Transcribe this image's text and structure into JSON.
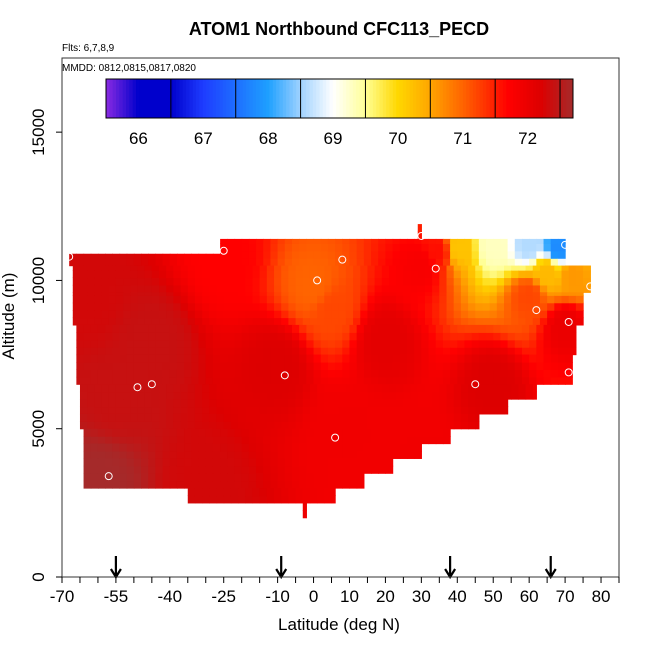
{
  "chart_data": {
    "type": "heatmap",
    "title": "ATOM1 Northbound CFC113_PECD",
    "notes": [
      "Flts: 6,7,8,9",
      "MMDD: 0812,0815,0817,0820"
    ],
    "xlabel": "Latitude (deg N)",
    "ylabel": "Altitude (m)",
    "xlim": [
      -70,
      85
    ],
    "ylim": [
      0,
      17500
    ],
    "x_ticks": [
      -70,
      -55,
      -40,
      -25,
      -10,
      0,
      10,
      20,
      30,
      40,
      50,
      60,
      70,
      80
    ],
    "y_ticks": [
      0,
      5000,
      10000,
      15000
    ],
    "colorbar": {
      "range": [
        65.5,
        72.7
      ],
      "ticks": [
        66,
        67,
        68,
        69,
        70,
        71,
        72
      ],
      "stops": [
        {
          "v": 65.5,
          "c": "#8a2be2"
        },
        {
          "v": 66.0,
          "c": "#0000cc"
        },
        {
          "v": 66.5,
          "c": "#0000cc"
        },
        {
          "v": 67.0,
          "c": "#1e3cff"
        },
        {
          "v": 68.0,
          "c": "#1ea0ff"
        },
        {
          "v": 68.5,
          "c": "#a0d2ff"
        },
        {
          "v": 69.0,
          "c": "#ffffff"
        },
        {
          "v": 69.5,
          "c": "#ffff96"
        },
        {
          "v": 70.0,
          "c": "#ffd700"
        },
        {
          "v": 70.5,
          "c": "#ffa500"
        },
        {
          "v": 71.0,
          "c": "#ff6400"
        },
        {
          "v": 71.7,
          "c": "#ff0000"
        },
        {
          "v": 72.2,
          "c": "#dd0000"
        },
        {
          "v": 72.7,
          "c": "#a52a2a"
        }
      ]
    },
    "coverage": [
      {
        "x0": -68,
        "x1": -26,
        "y0": 10500,
        "y1": 10900
      },
      {
        "x0": -26,
        "x1": 70,
        "y0": 10500,
        "y1": 11400
      },
      {
        "x0": 70,
        "x1": 77,
        "y0": 9800,
        "y1": 10500
      },
      {
        "x0": -67,
        "x1": 77,
        "y0": 9600,
        "y1": 10500
      },
      {
        "x0": -67,
        "x1": 75,
        "y0": 8500,
        "y1": 9600
      },
      {
        "x0": -66,
        "x1": 73,
        "y0": 7500,
        "y1": 8500
      },
      {
        "x0": -66,
        "x1": 72,
        "y0": 6500,
        "y1": 7500
      },
      {
        "x0": -65,
        "x1": 62,
        "y0": 6000,
        "y1": 6500
      },
      {
        "x0": -65,
        "x1": 54,
        "y0": 5500,
        "y1": 6000
      },
      {
        "x0": -65,
        "x1": 46,
        "y0": 5000,
        "y1": 5500
      },
      {
        "x0": -64,
        "x1": 38,
        "y0": 4500,
        "y1": 5000
      },
      {
        "x0": -64,
        "x1": 30,
        "y0": 4000,
        "y1": 4500
      },
      {
        "x0": -64,
        "x1": 22,
        "y0": 3500,
        "y1": 4000
      },
      {
        "x0": -64,
        "x1": 14,
        "y0": 3000,
        "y1": 3500
      },
      {
        "x0": -35,
        "x1": 6,
        "y0": 2500,
        "y1": 3000
      },
      {
        "x0": -3,
        "x1": -2,
        "y0": 2000,
        "y1": 2500
      },
      {
        "x0": 29,
        "x1": 30,
        "y0": 11400,
        "y1": 11900
      }
    ],
    "field_anchors": [
      {
        "lat": -60,
        "alt": 3300,
        "value": 72.7
      },
      {
        "lat": -55,
        "alt": 6000,
        "value": 72.4
      },
      {
        "lat": -62,
        "alt": 9500,
        "value": 72.3
      },
      {
        "lat": -45,
        "alt": 8000,
        "value": 72.4
      },
      {
        "lat": -25,
        "alt": 10700,
        "value": 71.7
      },
      {
        "lat": -10,
        "alt": 7200,
        "value": 72.2
      },
      {
        "lat": 0,
        "alt": 9800,
        "value": 71.0
      },
      {
        "lat": 5,
        "alt": 9000,
        "value": 71.2
      },
      {
        "lat": 10,
        "alt": 5000,
        "value": 71.9
      },
      {
        "lat": 20,
        "alt": 8000,
        "value": 72.1
      },
      {
        "lat": 30,
        "alt": 10500,
        "value": 71.8
      },
      {
        "lat": 35,
        "alt": 11000,
        "value": 71.6
      },
      {
        "lat": 40,
        "alt": 11100,
        "value": 70.2
      },
      {
        "lat": 50,
        "alt": 11200,
        "value": 69.3
      },
      {
        "lat": 60,
        "alt": 11200,
        "value": 68.6
      },
      {
        "lat": 68,
        "alt": 11100,
        "value": 67.8
      },
      {
        "lat": 65,
        "alt": 10300,
        "value": 70.3
      },
      {
        "lat": 72,
        "alt": 10200,
        "value": 70.6
      },
      {
        "lat": 60,
        "alt": 9500,
        "value": 71.2
      },
      {
        "lat": 70,
        "alt": 8500,
        "value": 72.0
      },
      {
        "lat": 50,
        "alt": 6500,
        "value": 72.2
      },
      {
        "lat": 30,
        "alt": 4000,
        "value": 71.9
      },
      {
        "lat": -30,
        "alt": 3000,
        "value": 72.3
      }
    ],
    "sample_points": [
      {
        "lat": -57,
        "alt": 3400
      },
      {
        "lat": -49,
        "alt": 6400
      },
      {
        "lat": -45,
        "alt": 6500
      },
      {
        "lat": -25,
        "alt": 11000
      },
      {
        "lat": -8,
        "alt": 6800
      },
      {
        "lat": 1,
        "alt": 10000
      },
      {
        "lat": 6,
        "alt": 4700
      },
      {
        "lat": 8,
        "alt": 10700
      },
      {
        "lat": 30,
        "alt": 11500
      },
      {
        "lat": 34,
        "alt": 10400
      },
      {
        "lat": 45,
        "alt": 6500
      },
      {
        "lat": 62,
        "alt": 9000
      },
      {
        "lat": 70,
        "alt": 11200
      },
      {
        "lat": 71,
        "alt": 8600
      },
      {
        "lat": 71,
        "alt": 6900
      },
      {
        "lat": 77,
        "alt": 9800
      },
      {
        "lat": -68,
        "alt": 10800
      }
    ],
    "flight_markers": [
      -55,
      -9,
      38,
      66
    ]
  }
}
